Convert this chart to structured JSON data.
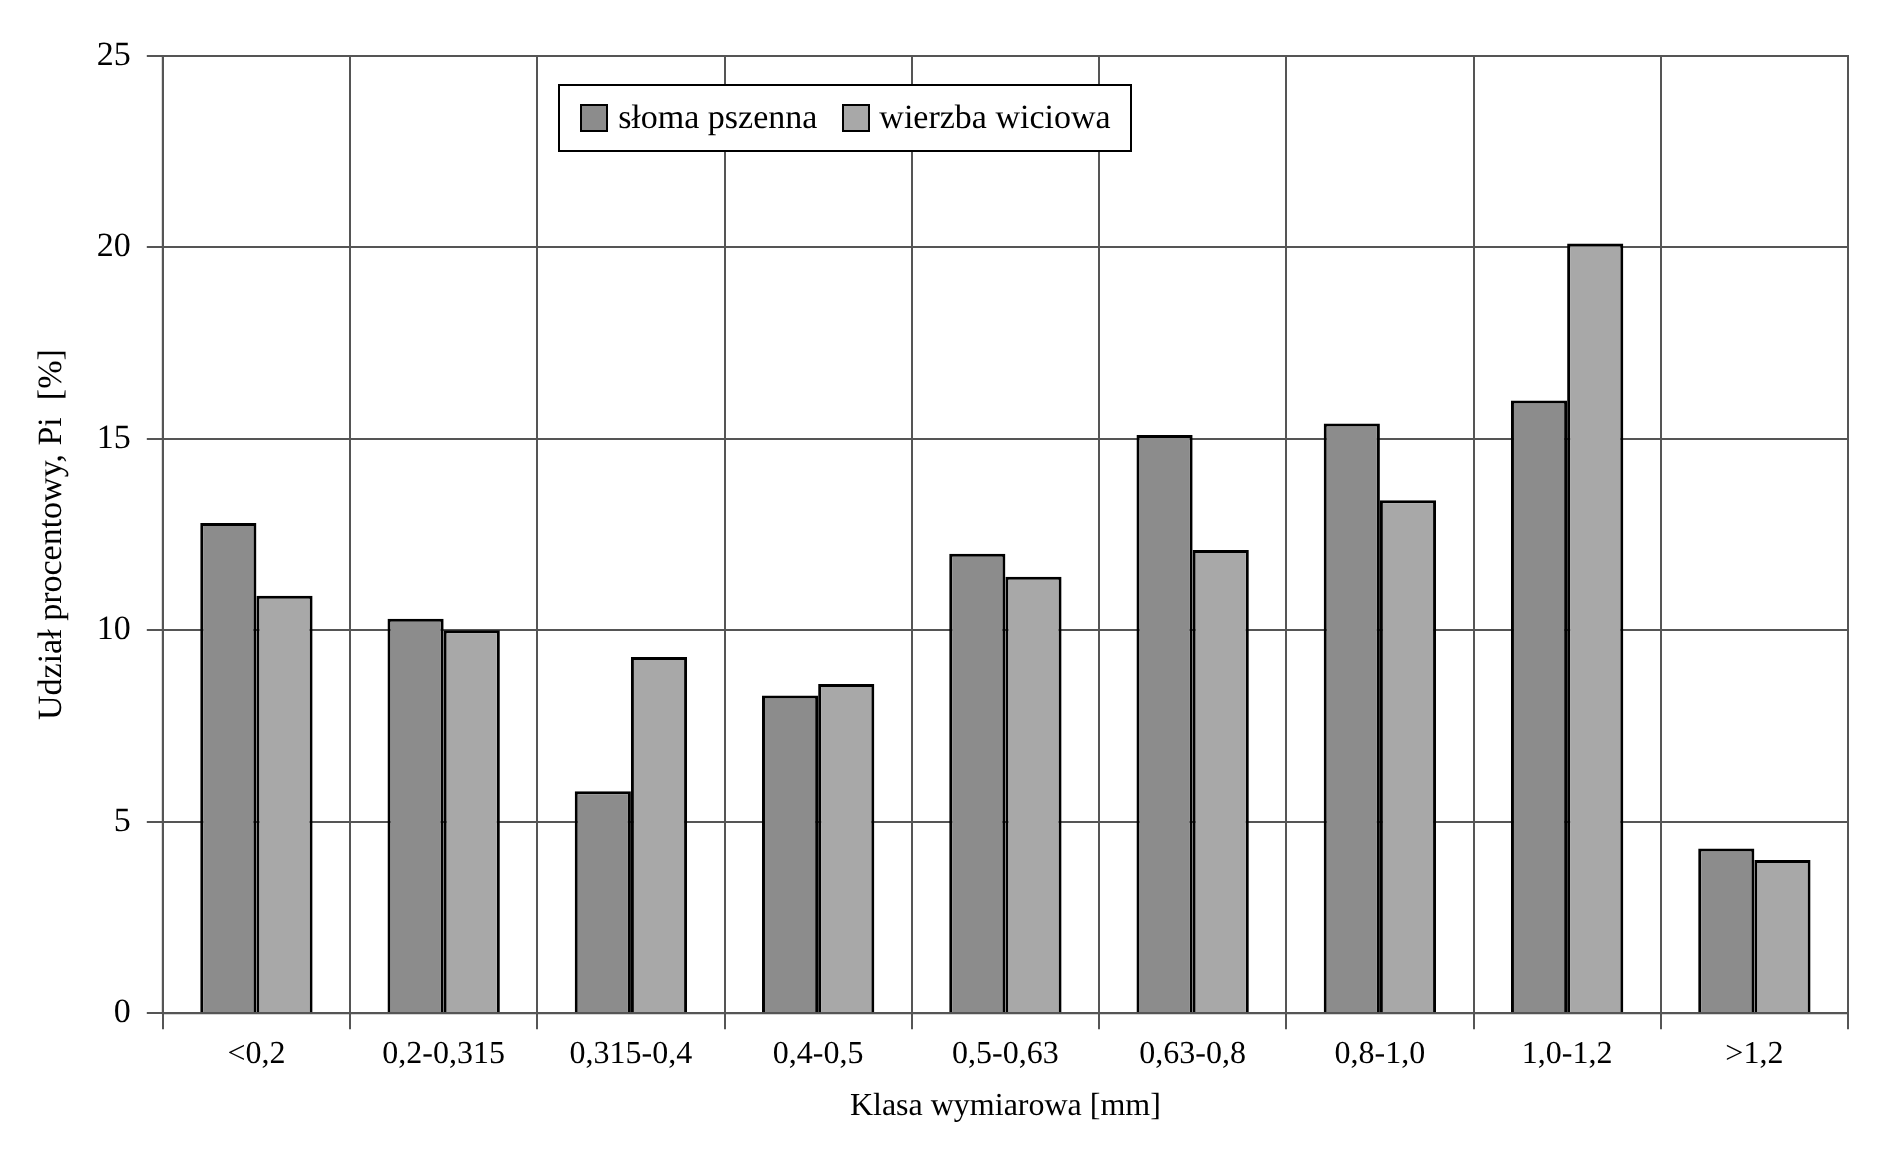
{
  "chart_data": {
    "type": "bar",
    "xlabel": "Klasa wymiarowa [mm]",
    "ylabel": "Udział procentowy, Pi  [%]",
    "categories": [
      "<0,2",
      "0,2-0,315",
      "0,315-0,4",
      "0,4-0,5",
      "0,5-0,63",
      "0,63-0,8",
      "0,8-1,0",
      "1,0-1,2",
      ">1,2"
    ],
    "series": [
      {
        "name": "słoma pszenna",
        "color": "#8c8c8c",
        "values": [
          12.8,
          10.3,
          5.8,
          8.3,
          12.0,
          15.1,
          15.4,
          16.0,
          4.3
        ]
      },
      {
        "name": "wierzba wiciowa",
        "color": "#a8a8a8",
        "values": [
          10.9,
          10.0,
          9.3,
          8.6,
          11.4,
          12.1,
          13.4,
          20.1,
          4.0
        ]
      }
    ],
    "ylim": [
      0,
      25
    ],
    "yticks": [
      0,
      5,
      10,
      15,
      20,
      25
    ],
    "grid": true,
    "legend": "top"
  }
}
